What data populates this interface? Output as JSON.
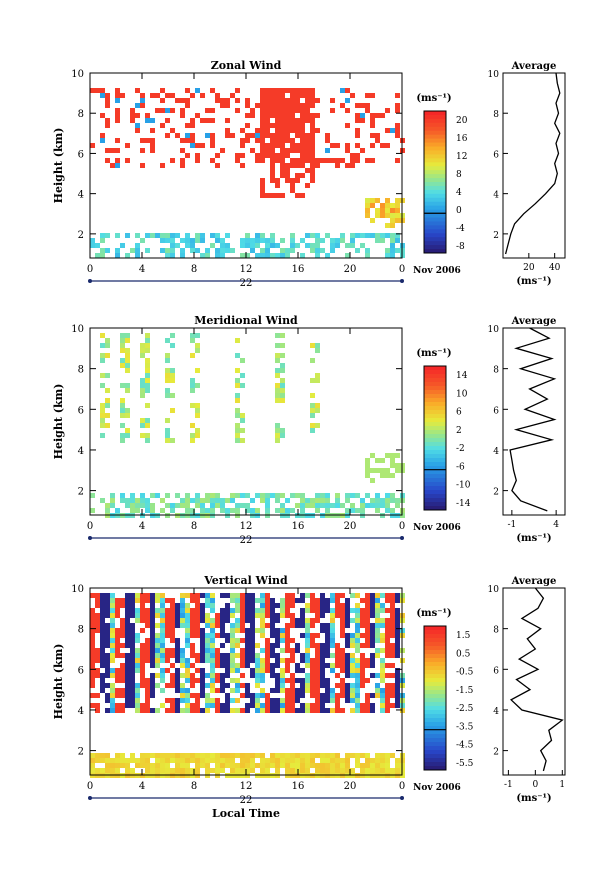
{
  "chart_data": [
    {
      "type": "heatmap",
      "title": "Zonal Wind",
      "xlabel": "",
      "ylabel": "Height (km)",
      "x_ticks": [
        "0",
        "4",
        "8",
        "12",
        "16",
        "20",
        "0"
      ],
      "y_ticks": [
        "2",
        "4",
        "6",
        "8",
        "10"
      ],
      "ylim": [
        0.8,
        10
      ],
      "xlim_hours": [
        0,
        24
      ],
      "day_label": "22",
      "date_label": "Nov 2006",
      "colorbar_unit": "(ms⁻¹)",
      "colorbar_ticks": [
        "20",
        "16",
        "12",
        "8",
        "4",
        "0",
        "-4",
        "-8"
      ],
      "colorbar_range": [
        -10,
        22
      ],
      "profile": {
        "title": "Average",
        "xlabel": "(ms⁻¹)",
        "x_ticks": [
          "20",
          "40"
        ],
        "xlim": [
          0,
          48
        ],
        "y_ticks": [
          "2",
          "4",
          "6",
          "8",
          "10"
        ],
        "heights": [
          1.0,
          1.5,
          2.0,
          2.5,
          3.0,
          3.5,
          4.0,
          4.5,
          5.0,
          5.5,
          6.0,
          6.5,
          7.0,
          7.5,
          8.0,
          8.5,
          9.0,
          9.5,
          10.0
        ],
        "values": [
          2,
          4,
          6,
          9,
          16,
          25,
          33,
          40,
          42,
          40,
          43,
          41,
          44,
          40,
          43,
          41,
          44,
          42,
          41
        ]
      }
    },
    {
      "type": "heatmap",
      "title": "Meridional Wind",
      "xlabel": "",
      "ylabel": "Height (km)",
      "x_ticks": [
        "0",
        "4",
        "8",
        "12",
        "16",
        "20",
        "0"
      ],
      "y_ticks": [
        "2",
        "4",
        "6",
        "8",
        "10"
      ],
      "ylim": [
        0.8,
        10
      ],
      "xlim_hours": [
        0,
        24
      ],
      "day_label": "22",
      "date_label": "Nov 2006",
      "colorbar_unit": "(ms⁻¹)",
      "colorbar_ticks": [
        "14",
        "10",
        "6",
        "2",
        "-2",
        "-6",
        "-10",
        "-14"
      ],
      "colorbar_range": [
        -16,
        16
      ],
      "profile": {
        "title": "Average",
        "xlabel": "(ms⁻¹)",
        "x_ticks": [
          "-1",
          "4"
        ],
        "xlim": [
          -2,
          5
        ],
        "y_ticks": [
          "2",
          "4",
          "6",
          "8",
          "10"
        ],
        "heights": [
          1.0,
          1.5,
          2.0,
          2.5,
          3.0,
          3.5,
          4.0,
          4.5,
          5.0,
          5.5,
          6.0,
          6.5,
          7.0,
          7.5,
          8.0,
          8.5,
          9.0,
          9.5,
          10.0
        ],
        "values": [
          3.0,
          0.0,
          -1.0,
          -0.5,
          -0.8,
          -1.0,
          -1.2,
          3.5,
          -0.5,
          3.8,
          0.5,
          3.0,
          1.0,
          3.8,
          0.0,
          3.5,
          -0.5,
          3.2,
          1.0
        ]
      }
    },
    {
      "type": "heatmap",
      "title": "Vertical Wind",
      "xlabel": "Local Time",
      "ylabel": "Height (km)",
      "x_ticks": [
        "0",
        "4",
        "8",
        "12",
        "16",
        "20",
        "0"
      ],
      "y_ticks": [
        "2",
        "4",
        "6",
        "8",
        "10"
      ],
      "ylim": [
        0.8,
        10
      ],
      "xlim_hours": [
        0,
        24
      ],
      "day_label": "22",
      "date_label": "Nov 2006",
      "colorbar_unit": "(ms⁻¹)",
      "colorbar_ticks": [
        "1.5",
        "0.5",
        "-0.5",
        "-1.5",
        "-2.5",
        "-3.5",
        "-4.5",
        "-5.5"
      ],
      "colorbar_range": [
        -6.5,
        2.0
      ],
      "profile": {
        "title": "Average",
        "xlabel": "(ms⁻¹)",
        "x_ticks": [
          "-1",
          "0",
          "1"
        ],
        "xlim": [
          -1.2,
          1.1
        ],
        "y_ticks": [
          "2",
          "4",
          "6",
          "8",
          "10"
        ],
        "heights": [
          1.0,
          1.5,
          2.0,
          2.5,
          3.0,
          3.5,
          4.0,
          4.5,
          5.0,
          5.5,
          6.0,
          6.5,
          7.0,
          7.5,
          8.0,
          8.5,
          9.0,
          9.5,
          10.0
        ],
        "values": [
          0.3,
          0.4,
          0.2,
          0.6,
          0.5,
          1.0,
          -0.5,
          -0.9,
          -0.2,
          -0.7,
          0.1,
          -0.6,
          0.0,
          -0.3,
          0.2,
          -0.5,
          0.1,
          0.3,
          0.0
        ]
      }
    }
  ]
}
